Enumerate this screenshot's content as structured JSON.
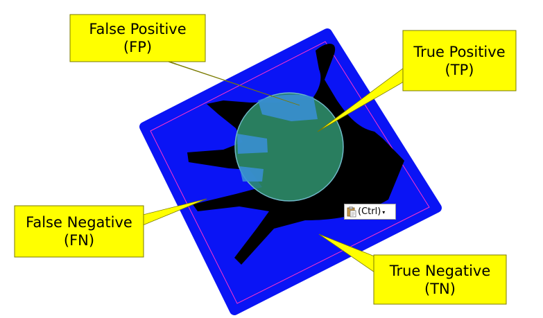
{
  "callouts": {
    "fp": {
      "line1": "False Positive",
      "line2": "(FP)"
    },
    "tp": {
      "line1": "True Positive",
      "line2": "(TP)"
    },
    "fn": {
      "line1": "False Negative",
      "line2": "(FN)"
    },
    "tn": {
      "line1": "True Negative",
      "line2": "(TN)"
    }
  },
  "paste_options": {
    "label": "(Ctrl)",
    "icon": "clipboard-icon",
    "caret_icon": "caret-down-icon"
  },
  "colors": {
    "background_region": "#0a14f5",
    "hand_region": "#000000",
    "prediction_circle": "#2f8f6c",
    "callout_fill": "#ffff00",
    "border_line": "#ff33cc"
  }
}
